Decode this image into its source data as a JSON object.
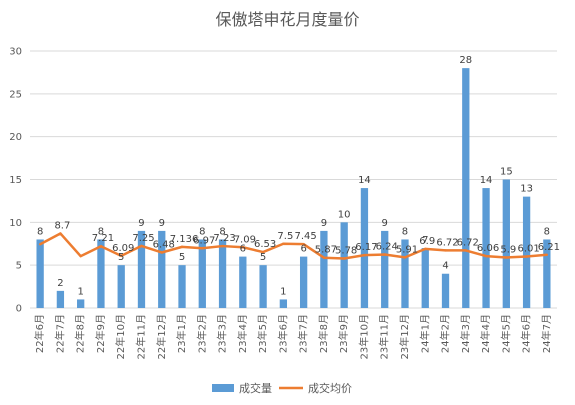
{
  "chart_data": {
    "type": "bar",
    "title": "保傲塔申花月度量价",
    "categories": [
      "22年6月",
      "22年7月",
      "22年8月",
      "22年9月",
      "22年10月",
      "22年11月",
      "22年12月",
      "23年1月",
      "23年2月",
      "23年3月",
      "23年4月",
      "23年5月",
      "23年6月",
      "23年7月",
      "23年8月",
      "23年9月",
      "23年10月",
      "23年11月",
      "23年12月",
      "24年1月",
      "24年2月",
      "24年3月",
      "24年4月",
      "24年5月",
      "24年6月",
      "24年7月"
    ],
    "series": [
      {
        "name": "成交量",
        "type": "bar",
        "color": "#5b9bd5",
        "values": [
          8,
          2,
          1,
          8,
          5,
          9,
          9,
          5,
          8,
          8,
          6,
          5,
          1,
          6,
          9,
          10,
          14,
          9,
          8,
          7,
          4,
          28,
          14,
          15,
          13,
          8
        ],
        "labels": [
          "8",
          "2",
          "1",
          "8",
          "5",
          "9",
          "9",
          "5",
          "8",
          "8",
          "6",
          "5",
          "1",
          "6",
          "9",
          "10",
          "14",
          "9",
          "8",
          "7",
          "4",
          "28",
          "14",
          "15",
          "13",
          "8"
        ]
      },
      {
        "name": "成交均价",
        "type": "line",
        "color": "#ed7d31",
        "values": [
          7.44,
          8.7,
          6.05,
          7.21,
          6.09,
          7.25,
          6.48,
          7.136,
          6.97,
          7.23,
          7.09,
          6.53,
          7.5,
          7.45,
          5.87,
          5.78,
          6.17,
          6.24,
          5.91,
          6.9,
          6.72,
          6.72,
          6.06,
          5.9,
          6.01,
          6.21
        ],
        "labels": [
          "",
          "8.7",
          "",
          "7.21",
          "6.09",
          "7.25",
          "6.48",
          "7.136",
          "6.97",
          "7.23",
          "7.09",
          "6.53",
          "7.5",
          "7.45",
          "5.87",
          "5.78",
          "6.17",
          "6.24",
          "5.91",
          "6.9",
          "6.72",
          "6.72",
          "6.06",
          "5.9",
          "6.01",
          "6.21"
        ]
      }
    ],
    "ylim": [
      0,
      30
    ],
    "yticks": [
      0,
      5,
      10,
      15,
      20,
      25,
      30
    ],
    "grid": true,
    "legend_position": "bottom"
  }
}
